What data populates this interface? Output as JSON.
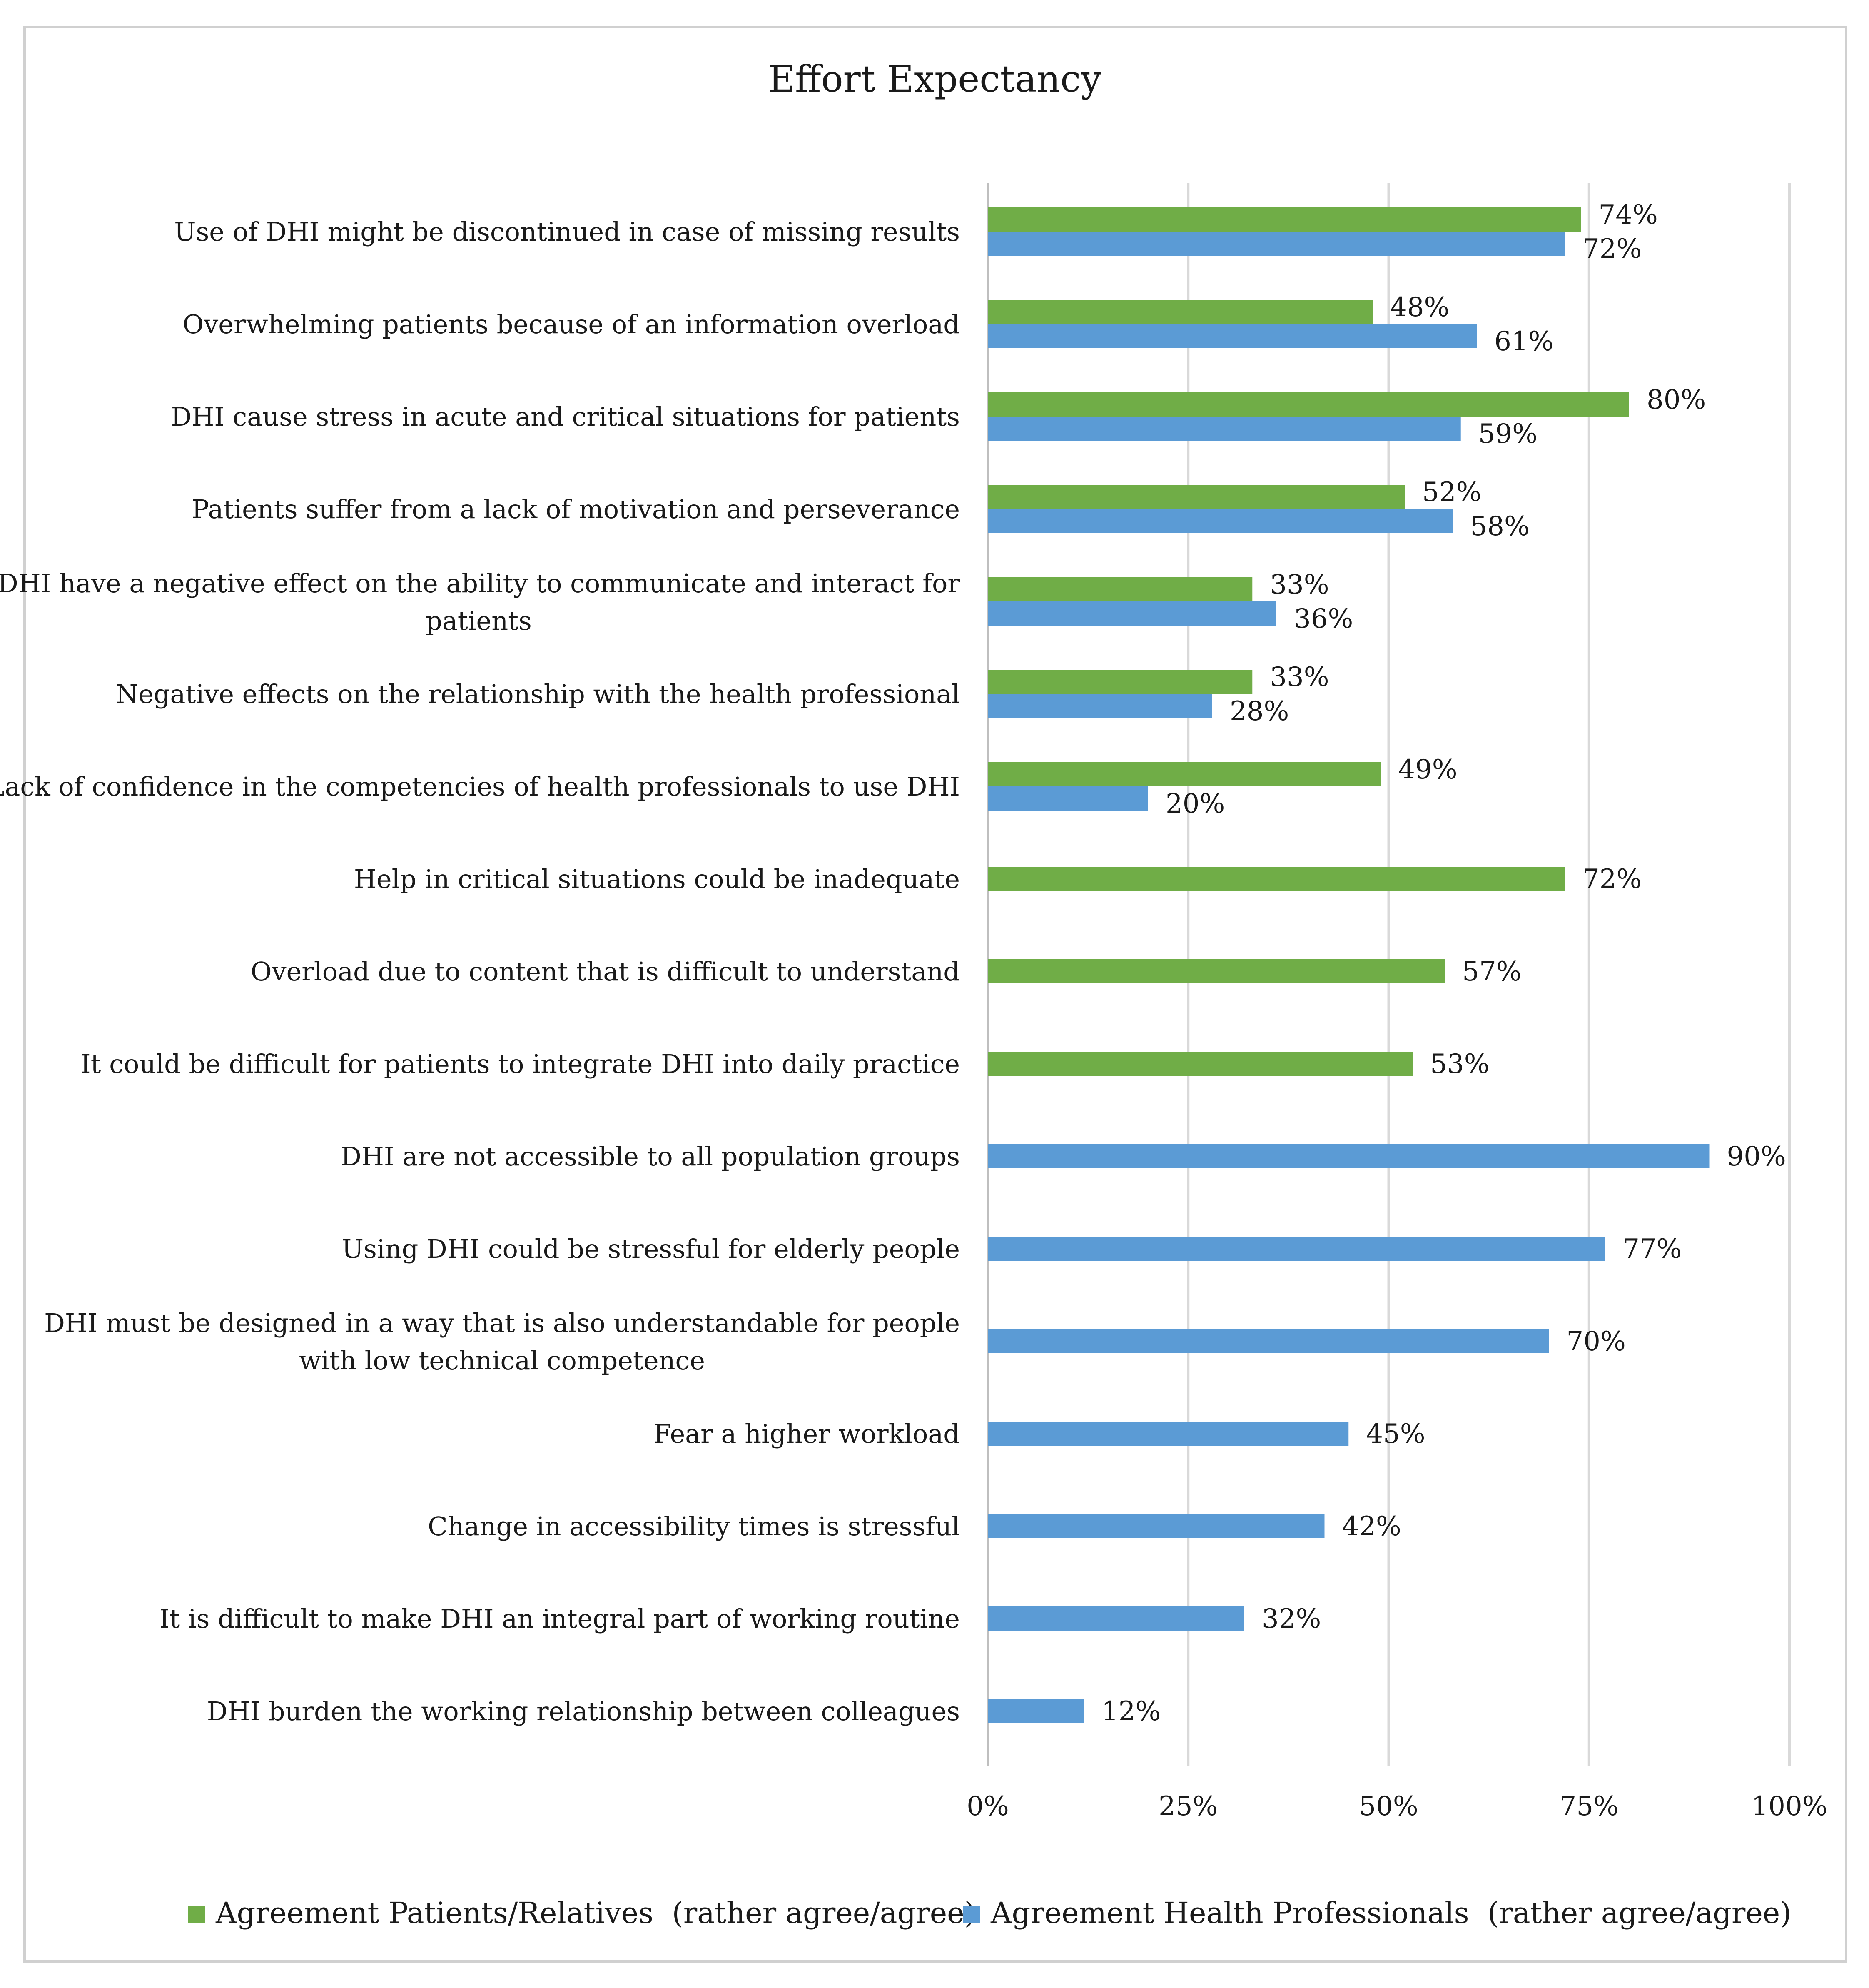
{
  "chart_data": {
    "type": "bar",
    "orientation": "horizontal",
    "title": "Effort Expectancy",
    "xlabel": "",
    "ylabel": "",
    "xlim": [
      0,
      100
    ],
    "grid": true,
    "legend_position": "bottom",
    "tick_values": [
      0,
      25,
      50,
      75,
      100
    ],
    "tick_labels": [
      "0%",
      "25%",
      "50%",
      "75%",
      "100%"
    ],
    "categories": [
      [
        "Use of DHI might be discontinued in case of missing results"
      ],
      [
        "Overwhelming patients because of an information overload"
      ],
      [
        "DHI cause stress in acute and critical situations for patients"
      ],
      [
        "Patients suffer from a lack of motivation and perseverance"
      ],
      [
        "DHI have a negative effect on the ability to communicate and interact for",
        "patients"
      ],
      [
        "Negative effects on the relationship with the health professional"
      ],
      [
        "Lack of confidence in the competencies of health professionals to use DHI"
      ],
      [
        "Help in critical situations could be inadequate"
      ],
      [
        "Overload due to content that is difficult to understand"
      ],
      [
        "It could be difficult for patients to integrate DHI into daily practice"
      ],
      [
        "DHI are not accessible to all population groups"
      ],
      [
        "Using DHI could be stressful for elderly people"
      ],
      [
        "DHI must be designed in a way that is also understandable for people",
        "with low technical competence"
      ],
      [
        "Fear a higher workload"
      ],
      [
        "Change in accessibility times is stressful"
      ],
      [
        "It is difficult to make DHI an integral part of working routine"
      ],
      [
        "DHI burden the working relationship between colleagues"
      ]
    ],
    "series": [
      {
        "name": "Agreement Patients/Relatives  (rather agree/agree)",
        "color": "#70ad47",
        "values": [
          74,
          48,
          80,
          52,
          33,
          33,
          49,
          72,
          57,
          53,
          null,
          null,
          null,
          null,
          null,
          null,
          null
        ]
      },
      {
        "name": "Agreement Health Professionals  (rather agree/agree)",
        "color": "#5b9bd5",
        "values": [
          72,
          61,
          59,
          58,
          36,
          28,
          20,
          null,
          null,
          null,
          90,
          77,
          70,
          45,
          42,
          32,
          12
        ]
      }
    ]
  }
}
